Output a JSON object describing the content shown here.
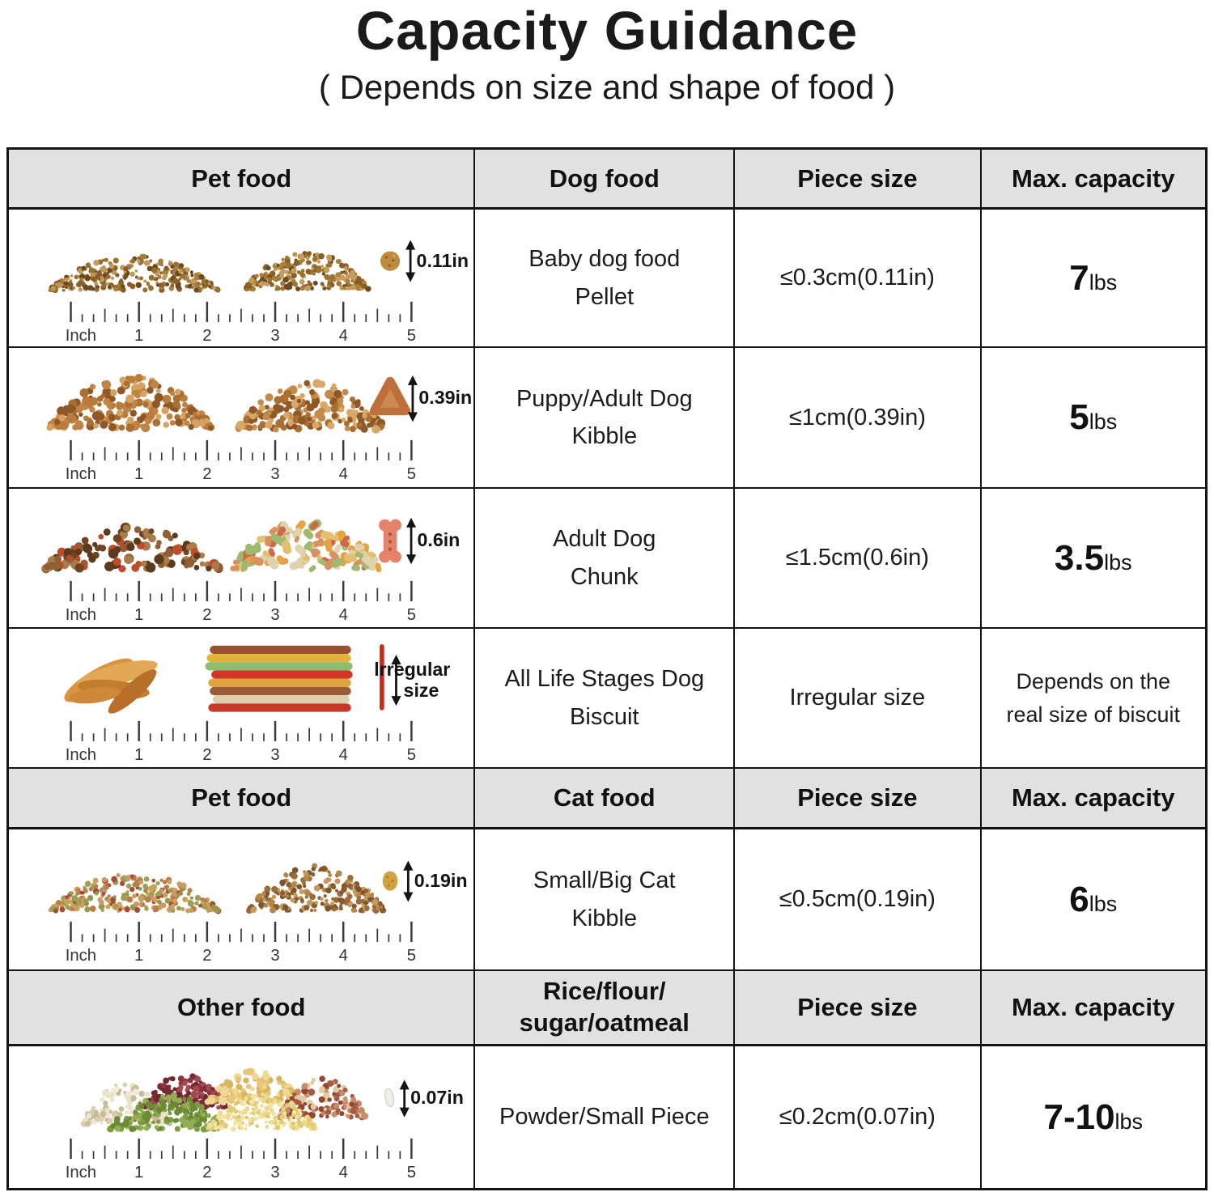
{
  "title": "Capacity Guidance",
  "subtitle": "( Depends on size and shape of food )",
  "colors": {
    "header_bg": "#e1e1e1",
    "border": "#141414",
    "text": "#1c1c1c"
  },
  "ruler": {
    "unit_label": "Inch",
    "numbers": [
      "1",
      "2",
      "3",
      "4",
      "5"
    ]
  },
  "headers": {
    "dog": {
      "pet": "Pet food",
      "food": "Dog food",
      "piece": "Piece size",
      "capacity": "Max. capacity"
    },
    "cat": {
      "pet": "Pet food",
      "food": "Cat food",
      "piece": "Piece size",
      "capacity": "Max. capacity"
    },
    "other": {
      "pet": "Other food",
      "food_line1": "Rice/flour/",
      "food_line2": "sugar/oatmeal",
      "piece": "Piece size",
      "capacity": "Max. capacity"
    }
  },
  "rows": {
    "pellet": {
      "name_line1": "Baby dog food",
      "name_line2": "Pellet",
      "size_label": "0.11in",
      "piece": "≤0.3cm(0.11in)",
      "cap_value": "7",
      "cap_unit": "lbs"
    },
    "kibble": {
      "name_line1": "Puppy/Adult Dog",
      "name_line2": "Kibble",
      "size_label": "0.39in",
      "piece": "≤1cm(0.39in)",
      "cap_value": "5",
      "cap_unit": "lbs"
    },
    "chunk": {
      "name_line1": "Adult Dog",
      "name_line2": "Chunk",
      "size_label": "0.6in",
      "piece": "≤1.5cm(0.6in)",
      "cap_value": "3.5",
      "cap_unit": "lbs"
    },
    "biscuit": {
      "name_line1": "All Life Stages Dog",
      "name_line2": "Biscuit",
      "size_label_line1": "lrregular",
      "size_label_line2": "size",
      "piece": "Irregular size",
      "cap_line1": "Depends on the",
      "cap_line2": "real size of biscuit"
    },
    "cat": {
      "name_line1": "Small/Big Cat",
      "name_line2": "Kibble",
      "size_label": "0.19in",
      "piece": "≤0.5cm(0.19in)",
      "cap_value": "6",
      "cap_unit": "lbs"
    },
    "powder": {
      "name": "Powder/Small Piece",
      "size_label": "0.07in",
      "piece": "≤0.2cm(0.07in)",
      "cap_value": "7-10",
      "cap_unit": "lbs"
    }
  }
}
